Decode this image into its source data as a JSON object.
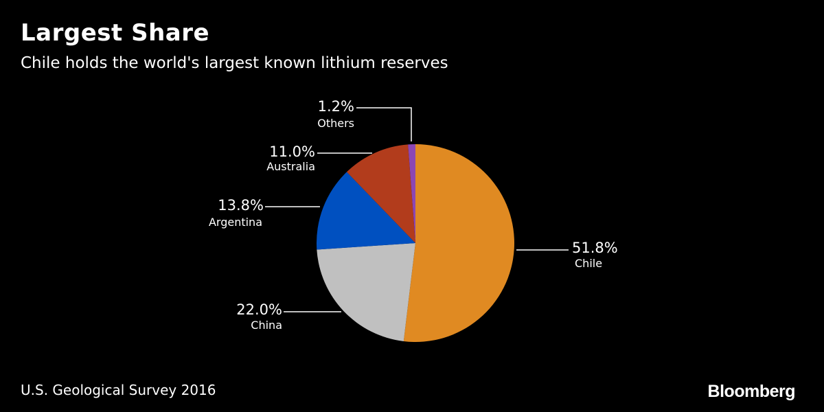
{
  "title": "Largest Share",
  "subtitle": "Chile holds the world's largest known lithium reserves",
  "source": "U.S. Geological Survey 2016",
  "brand": "Bloomberg",
  "colors": {
    "background": "#000000",
    "text": "#ffffff",
    "leader_line": "#ffffff"
  },
  "chart_data": {
    "type": "pie",
    "start_angle_deg": 0,
    "direction": "clockwise",
    "slices": [
      {
        "label": "Chile",
        "value": 51.8,
        "value_label": "51.8%",
        "color": "#e08a22"
      },
      {
        "label": "China",
        "value": 22.0,
        "value_label": "22.0%",
        "color": "#c0c0c0"
      },
      {
        "label": "Argentina",
        "value": 13.8,
        "value_label": "13.8%",
        "color": "#0050c0"
      },
      {
        "label": "Australia",
        "value": 11.0,
        "value_label": "11.0%",
        "color": "#b23c1c"
      },
      {
        "label": "Others",
        "value": 1.2,
        "value_label": "1.2%",
        "color": "#8c46b4"
      }
    ]
  }
}
